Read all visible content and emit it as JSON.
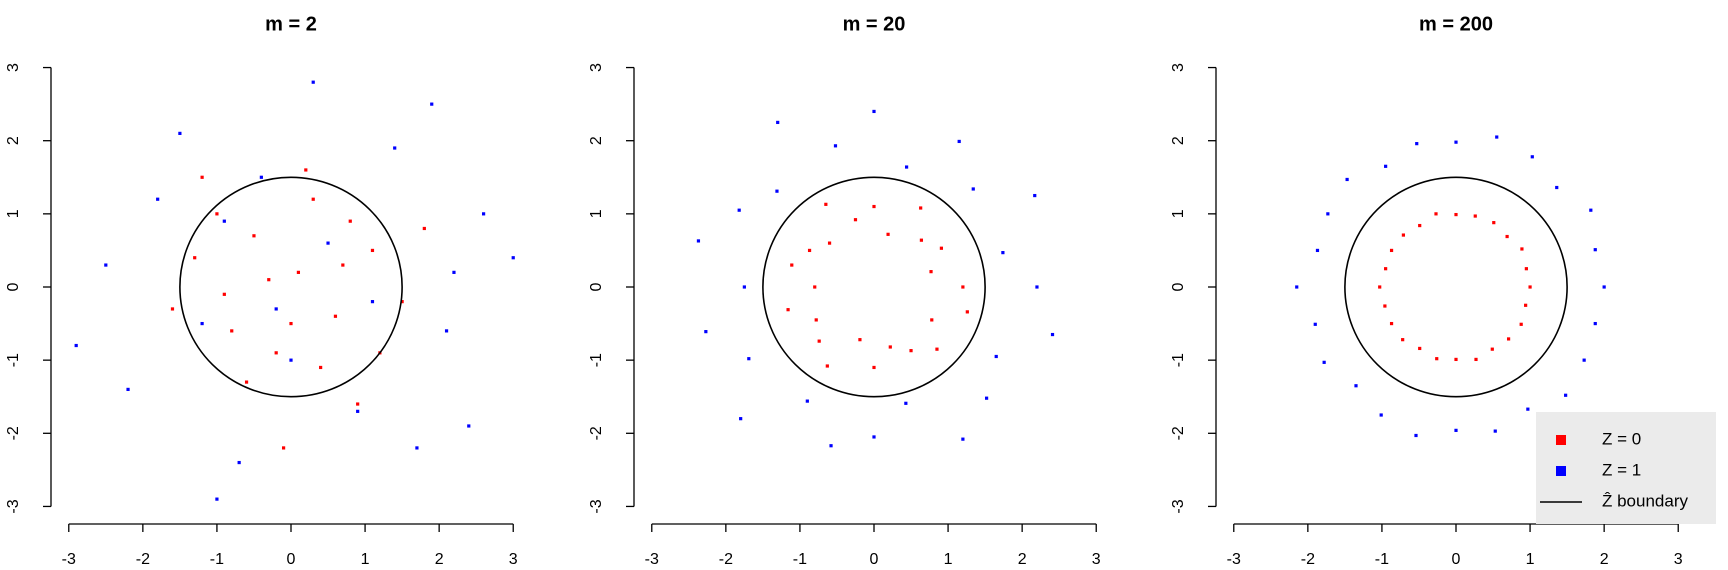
{
  "chart_data": [
    {
      "type": "scatter",
      "title": "m = 2",
      "xlim": [
        -3.24,
        3.24
      ],
      "ylim": [
        -3.24,
        3.24
      ],
      "xticks": [
        -3,
        -2,
        -1,
        0,
        1,
        2,
        3
      ],
      "yticks": [
        -3,
        -2,
        -1,
        0,
        1,
        2,
        3
      ],
      "boundary_radius": 1.5,
      "boundary_color": "#000000",
      "series": [
        {
          "color": "#ff0000",
          "x": [
            0.1,
            -0.5,
            0.6,
            -0.9,
            1.1,
            0.3,
            -0.2,
            -1.3,
            0.8,
            -0.6,
            1.5,
            0.0,
            -1.0,
            0.4,
            -0.3,
            1.2,
            -1.6,
            0.7,
            -0.8,
            0.2,
            1.8,
            -0.1,
            -1.2,
            0.9
          ],
          "y": [
            0.2,
            0.7,
            -0.4,
            -0.1,
            0.5,
            1.2,
            -0.9,
            0.4,
            0.9,
            -1.3,
            -0.2,
            -0.5,
            1.0,
            -1.1,
            0.1,
            -0.9,
            -0.3,
            0.3,
            -0.6,
            1.6,
            0.8,
            -2.2,
            1.5,
            -1.6
          ]
        },
        {
          "color": "#0000ff",
          "x": [
            0.3,
            -1.8,
            2.1,
            -0.7,
            1.4,
            -2.5,
            0.9,
            -1.2,
            2.6,
            -0.2,
            1.7,
            -2.9,
            0.5,
            -1.5,
            2.4,
            -0.9,
            1.1,
            -2.2,
            3.0,
            -0.4,
            1.9,
            -1.0,
            0.0,
            2.2
          ],
          "y": [
            2.8,
            1.2,
            -0.6,
            -2.4,
            1.9,
            0.3,
            -1.7,
            -0.5,
            1.0,
            -0.3,
            -2.2,
            -0.8,
            0.6,
            2.1,
            -1.9,
            0.9,
            -0.2,
            -1.4,
            0.4,
            1.5,
            2.5,
            -2.9,
            -1.0,
            0.2
          ]
        }
      ]
    },
    {
      "type": "scatter",
      "title": "m = 20",
      "xlim": [
        -3.24,
        3.24
      ],
      "ylim": [
        -3.24,
        3.24
      ],
      "xticks": [
        -3,
        -2,
        -1,
        0,
        1,
        2,
        3
      ],
      "yticks": [
        -3,
        -2,
        -1,
        0,
        1,
        2,
        3
      ],
      "boundary_radius": 1.5,
      "boundary_color": "#000000",
      "series": [
        {
          "color": "#ff0000",
          "x": [
            1.2,
            0.77,
            0.91,
            0.64,
            0.63,
            0.19,
            0,
            -0.25,
            -0.65,
            -0.6,
            -0.87,
            -1.11,
            -0.8,
            -1.16,
            -0.78,
            -0.74,
            -0.63,
            -0.19,
            0,
            0.22,
            0.5,
            0.85,
            0.78,
            1.26
          ],
          "y": [
            0,
            0.21,
            0.53,
            0.64,
            1.08,
            0.72,
            1.1,
            0.92,
            1.13,
            0.6,
            0.5,
            0.3,
            0,
            -0.31,
            -0.45,
            -0.74,
            -1.08,
            -0.72,
            -1.1,
            -0.82,
            -0.87,
            -0.85,
            -0.45,
            -0.34
          ]
        },
        {
          "color": "#0000ff",
          "x": [
            2.2,
            1.74,
            2.17,
            1.34,
            1.15,
            0.44,
            0,
            -0.52,
            -1.3,
            -1.31,
            -1.82,
            -2.37,
            -1.75,
            -2.27,
            -1.69,
            -1.8,
            -0.9,
            -0.58,
            0,
            0.43,
            1.2,
            1.52,
            1.65,
            2.41
          ],
          "y": [
            0,
            0.47,
            1.25,
            1.34,
            1.99,
            1.64,
            2.4,
            1.93,
            2.25,
            1.31,
            1.05,
            0.63,
            0,
            -0.61,
            -0.98,
            -1.8,
            -1.56,
            -2.17,
            -2.05,
            -1.59,
            -2.08,
            -1.52,
            -0.95,
            -0.65
          ]
        }
      ]
    },
    {
      "type": "scatter",
      "title": "m = 200",
      "xlim": [
        -3.24,
        3.24
      ],
      "ylim": [
        -3.24,
        3.24
      ],
      "xticks": [
        -3,
        -2,
        -1,
        0,
        1,
        2,
        3
      ],
      "yticks": [
        -3,
        -2,
        -1,
        0,
        1,
        2,
        3
      ],
      "boundary_radius": 1.5,
      "boundary_color": "#000000",
      "boundary_name": "Ẑ boundary",
      "legend": "bottom-right",
      "series": [
        {
          "name": "Z = 0",
          "color": "#ff0000",
          "x": [
            1.0,
            0.95,
            0.89,
            0.69,
            0.51,
            0.26,
            0,
            -0.27,
            -0.49,
            -0.71,
            -0.87,
            -0.95,
            -1.03,
            -0.96,
            -0.87,
            -0.72,
            -0.49,
            -0.26,
            0,
            0.27,
            0.49,
            0.71,
            0.88,
            0.94
          ],
          "y": [
            0,
            0.25,
            0.52,
            0.69,
            0.88,
            0.97,
            0.99,
            1.0,
            0.84,
            0.71,
            0.5,
            0.25,
            0,
            -0.26,
            -0.5,
            -0.72,
            -0.84,
            -0.98,
            -0.99,
            -0.99,
            -0.85,
            -0.71,
            -0.51,
            -0.25
          ]
        },
        {
          "name": "Z = 1",
          "color": "#0000ff",
          "x": [
            2.0,
            1.88,
            1.82,
            1.36,
            1.03,
            0.55,
            0,
            -0.53,
            -0.95,
            -1.47,
            -1.73,
            -1.87,
            -2.15,
            -1.9,
            -1.78,
            -1.35,
            -1.01,
            -0.54,
            0,
            0.53,
            0.97,
            1.48,
            1.73,
            1.88
          ],
          "y": [
            0,
            0.51,
            1.05,
            1.36,
            1.78,
            2.05,
            1.98,
            1.96,
            1.65,
            1.47,
            1.0,
            0.5,
            0,
            -0.51,
            -1.03,
            -1.35,
            -1.75,
            -2.03,
            -1.96,
            -1.97,
            -1.67,
            -1.48,
            -1.0,
            -0.5
          ]
        }
      ]
    }
  ]
}
